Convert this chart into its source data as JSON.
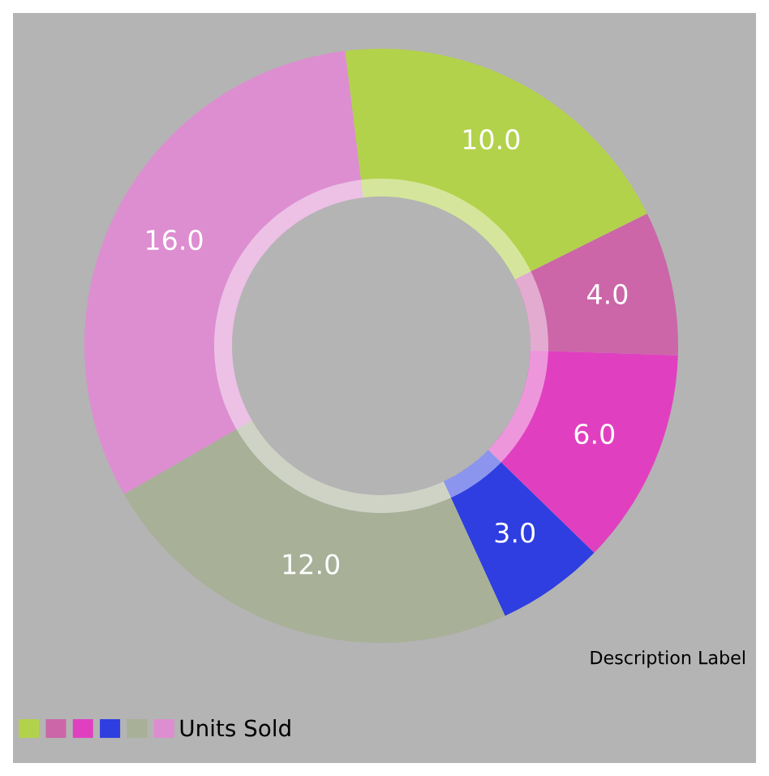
{
  "chart_data": {
    "type": "donut",
    "categories": [
      null,
      null,
      null,
      null,
      null,
      null
    ],
    "series": [
      {
        "name": "Units Sold",
        "values": [
          10,
          4,
          6,
          3,
          12,
          16
        ],
        "colors": [
          "#b3d24b",
          "#cc66a8",
          "#e040c0",
          "#2e3ee0",
          "#a8b098",
          "#dd8ed0"
        ],
        "value_labels": [
          "10.0",
          "4.0",
          "6.0",
          "3.0",
          "12.0",
          "16.0"
        ]
      }
    ],
    "annotations": [
      "Description Label"
    ],
    "legend": "bottom left"
  }
}
